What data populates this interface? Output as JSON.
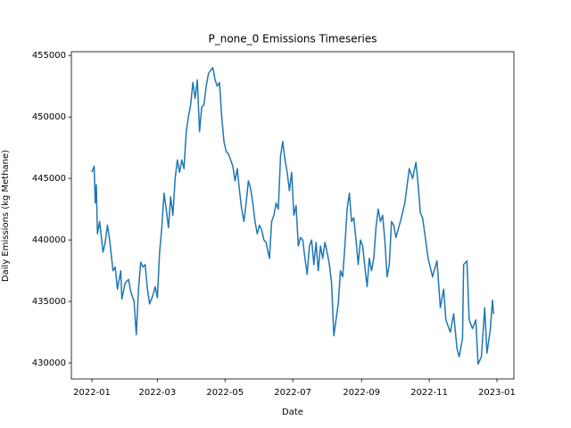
{
  "chart_data": {
    "type": "line",
    "title": "P_none_0 Emissions Timeseries",
    "x_label": "Date",
    "y_label": "Daily Emissions (kg Methane)",
    "color": "#1f77b4",
    "x": [
      0,
      2,
      3,
      4,
      5,
      7,
      10,
      12,
      14,
      16,
      19,
      21,
      23,
      26,
      27,
      30,
      33,
      35,
      38,
      40,
      42,
      44,
      46,
      48,
      50,
      52,
      55,
      57,
      59,
      61,
      63,
      65,
      67,
      69,
      71,
      73,
      75,
      77,
      79,
      81,
      83,
      85,
      87,
      89,
      91,
      93,
      95,
      97,
      99,
      101,
      103,
      105,
      107,
      109,
      111,
      113,
      115,
      117,
      119,
      121,
      123,
      125,
      127,
      129,
      131,
      133,
      135,
      137,
      139,
      141,
      143,
      145,
      147,
      149,
      151,
      153,
      155,
      157,
      160,
      162,
      164,
      166,
      168,
      170,
      172,
      174,
      176,
      178,
      180,
      182,
      184,
      186,
      188,
      190,
      192,
      194,
      196,
      198,
      200,
      202,
      204,
      206,
      208,
      210,
      212,
      214,
      216,
      218,
      220,
      222,
      224,
      226,
      228,
      230,
      232,
      234,
      236,
      238,
      240,
      242,
      244,
      246,
      248,
      250,
      252,
      254,
      256,
      258,
      260,
      262,
      264,
      266,
      268,
      270,
      272,
      274,
      278,
      282,
      286,
      289,
      292,
      294,
      296,
      298,
      300,
      303,
      307,
      311,
      314,
      317,
      319,
      323,
      326,
      329,
      331,
      334,
      335,
      338,
      340,
      343,
      346,
      348,
      351,
      354,
      356,
      359,
      361,
      362
    ],
    "values": [
      445500,
      446000,
      443000,
      444500,
      440500,
      441500,
      439000,
      439800,
      441200,
      440000,
      437500,
      437800,
      436000,
      437500,
      435200,
      436500,
      436800,
      435800,
      435000,
      432300,
      436000,
      438200,
      437800,
      438000,
      436000,
      434800,
      435500,
      436200,
      435300,
      439000,
      441000,
      443800,
      442500,
      441000,
      443500,
      442000,
      445000,
      446500,
      445500,
      446500,
      445800,
      448800,
      450000,
      451000,
      452800,
      451500,
      453000,
      448800,
      450800,
      451000,
      452500,
      453500,
      453800,
      454000,
      453000,
      452500,
      452800,
      450000,
      448000,
      447200,
      447000,
      446500,
      446000,
      444800,
      445800,
      444000,
      442500,
      441500,
      443000,
      444800,
      444200,
      443000,
      441500,
      440500,
      441200,
      440800,
      440000,
      439800,
      438500,
      441500,
      442000,
      443000,
      442500,
      446800,
      448000,
      446500,
      445500,
      444000,
      445500,
      442000,
      442800,
      439500,
      440200,
      440000,
      438500,
      437200,
      439500,
      440000,
      438000,
      439800,
      437500,
      439500,
      438500,
      439800,
      439000,
      438000,
      436500,
      432200,
      433500,
      434800,
      437500,
      437000,
      439500,
      442500,
      443800,
      441500,
      441800,
      440000,
      438000,
      440000,
      439500,
      437800,
      436200,
      438500,
      437500,
      438500,
      441000,
      442500,
      441500,
      442000,
      440000,
      437000,
      438000,
      441500,
      441200,
      440200,
      441500,
      443000,
      445800,
      445000,
      446300,
      444500,
      442200,
      441800,
      440500,
      438500,
      437000,
      438300,
      434500,
      436000,
      433500,
      432500,
      434000,
      431200,
      430500,
      432000,
      438000,
      438300,
      433500,
      432800,
      433500,
      429900,
      430500,
      434500,
      430800,
      432700,
      435100,
      434000
    ],
    "xlim": [
      -18.5,
      380.3
    ],
    "xticks": [
      {
        "value": 0,
        "label": "2022-01"
      },
      {
        "value": 59,
        "label": "2022-03"
      },
      {
        "value": 120,
        "label": "2022-05"
      },
      {
        "value": 181,
        "label": "2022-07"
      },
      {
        "value": 243,
        "label": "2022-09"
      },
      {
        "value": 304,
        "label": "2022-11"
      },
      {
        "value": 365,
        "label": "2023-01"
      }
    ],
    "ylim": [
      428700,
      455300
    ],
    "yticks": [
      430000,
      435000,
      440000,
      445000,
      450000,
      455000
    ]
  }
}
